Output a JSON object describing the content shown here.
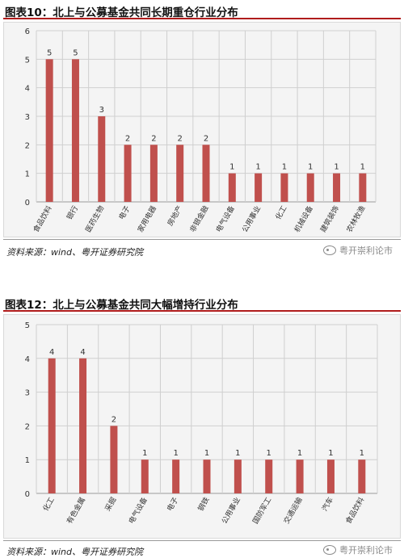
{
  "chart_data": [
    {
      "type": "bar",
      "title": "图表10：北上与公募基金共同长期重仓行业分布",
      "categories": [
        "食品饮料",
        "银行",
        "医药生物",
        "电子",
        "家用电器",
        "房地产",
        "非银金融",
        "电气设备",
        "公用事业",
        "化工",
        "机械设备",
        "建筑装饰",
        "农林牧渔"
      ],
      "values": [
        5,
        5,
        3,
        2,
        2,
        2,
        2,
        1,
        1,
        1,
        1,
        1,
        1
      ],
      "ylim": [
        0,
        6
      ],
      "yticks": [
        0,
        1,
        2,
        3,
        4,
        5,
        6
      ],
      "grid": true,
      "bar_color": "#c0504d",
      "source": "资料来源：wind、粤开证券研究院",
      "watermark": "粤开崇利论市"
    },
    {
      "type": "bar",
      "title": "图表12：北上与公募基金共同大幅增持行业分布",
      "categories": [
        "化工",
        "有色金属",
        "采掘",
        "电气设备",
        "电子",
        "钢铁",
        "公用事业",
        "国防军工",
        "交通运输",
        "汽车",
        "食品饮料"
      ],
      "values": [
        4,
        4,
        2,
        1,
        1,
        1,
        1,
        1,
        1,
        1,
        1
      ],
      "ylim": [
        0,
        5
      ],
      "yticks": [
        0,
        1,
        2,
        3,
        4,
        5
      ],
      "grid": true,
      "bar_color": "#c0504d",
      "source": "资料来源：wind、粤开证券研究院",
      "watermark": "粤开崇利论市"
    }
  ]
}
